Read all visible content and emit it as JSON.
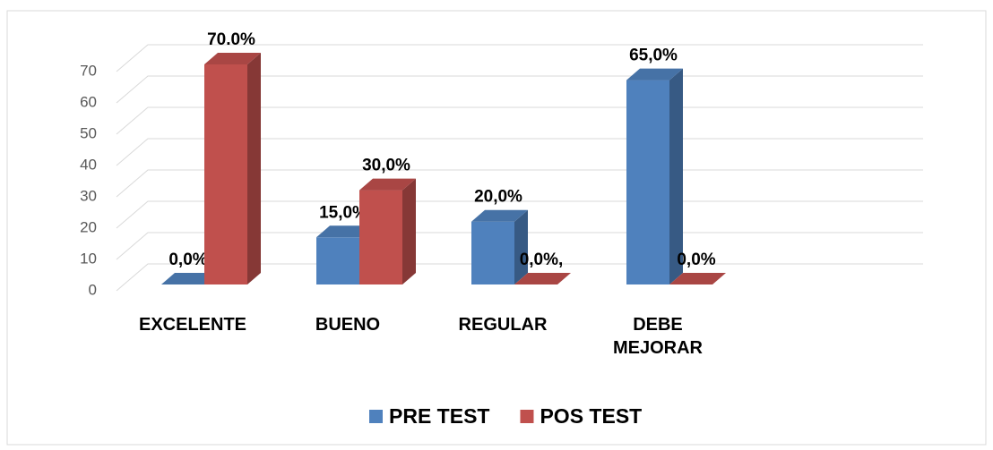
{
  "chart_data": {
    "type": "bar3d",
    "categories": [
      "EXCELENTE",
      "BUENO",
      "REGULAR",
      "DEBE MEJORAR"
    ],
    "series": [
      {
        "name": "PRE TEST",
        "color": "#4f81bd",
        "values": [
          0,
          15,
          20,
          65
        ],
        "value_labels": [
          "0,0%",
          "15,0%",
          "20,0%",
          "65,0%"
        ]
      },
      {
        "name": "POS TEST",
        "color": "#c0504d",
        "values": [
          70,
          30,
          0,
          0
        ],
        "value_labels": [
          "70.0%",
          "30,0%",
          "0,0%,",
          "0,0%"
        ]
      }
    ],
    "ylim": [
      0,
      70
    ],
    "yticks": [
      0,
      10,
      20,
      30,
      40,
      50,
      60,
      70
    ],
    "grid": true,
    "legend": "bottom"
  }
}
